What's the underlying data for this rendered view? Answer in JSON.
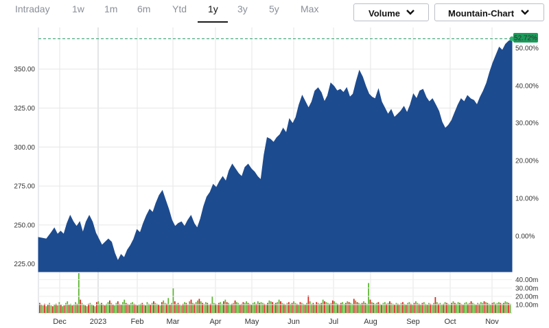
{
  "tabs": [
    {
      "label": "Intraday",
      "active": false
    },
    {
      "label": "1w",
      "active": false
    },
    {
      "label": "1m",
      "active": false
    },
    {
      "label": "6m",
      "active": false
    },
    {
      "label": "Ytd",
      "active": false
    },
    {
      "label": "1y",
      "active": true
    },
    {
      "label": "3y",
      "active": false
    },
    {
      "label": "5y",
      "active": false
    },
    {
      "label": "Max",
      "active": false
    }
  ],
  "controls": {
    "volume_label": "Volume",
    "chart_type_label": "Mountain-Chart"
  },
  "colors": {
    "area_fill": "#1d4b8f",
    "up_volume": "#5cb531",
    "down_volume": "#d7261e",
    "badge": "#1a9c5a",
    "grid": "#e6e6e6"
  },
  "chart_data": {
    "type": "area",
    "price_axis": {
      "ticks": [
        "225.00",
        "250.00",
        "275.00",
        "300.00",
        "325.00",
        "350.00"
      ],
      "range": [
        220,
        371
      ]
    },
    "percent_axis": {
      "ticks": [
        "0.00%",
        "10.00%",
        "20.00%",
        "30.00%",
        "40.00%",
        "50.00%"
      ]
    },
    "volume_axis": {
      "ticks": [
        "10.00m",
        "20.00m",
        "30.00m",
        "40.00m"
      ],
      "max": 48
    },
    "last_change_badge": "52.72%",
    "months": [
      "Dec",
      "2023",
      "Feb",
      "Mar",
      "Apr",
      "May",
      "Jun",
      "Jul",
      "Aug",
      "Sep",
      "Oct",
      "Nov"
    ],
    "price_series": [
      [
        0,
        242
      ],
      [
        5,
        241
      ],
      [
        8,
        245
      ],
      [
        10,
        248
      ],
      [
        12,
        244
      ],
      [
        14,
        246
      ],
      [
        16,
        244
      ],
      [
        18,
        251
      ],
      [
        20,
        256
      ],
      [
        22,
        252
      ],
      [
        24,
        249
      ],
      [
        26,
        252
      ],
      [
        28,
        245
      ],
      [
        30,
        252
      ],
      [
        32,
        256
      ],
      [
        34,
        252
      ],
      [
        36,
        245
      ],
      [
        38,
        241
      ],
      [
        40,
        237
      ],
      [
        42,
        239
      ],
      [
        44,
        241
      ],
      [
        46,
        239
      ],
      [
        48,
        232
      ],
      [
        50,
        227
      ],
      [
        52,
        231
      ],
      [
        54,
        229
      ],
      [
        56,
        234
      ],
      [
        58,
        237
      ],
      [
        60,
        241
      ],
      [
        62,
        247
      ],
      [
        64,
        245
      ],
      [
        66,
        251
      ],
      [
        68,
        256
      ],
      [
        70,
        260
      ],
      [
        72,
        258
      ],
      [
        74,
        264
      ],
      [
        76,
        269
      ],
      [
        78,
        272
      ],
      [
        80,
        266
      ],
      [
        82,
        260
      ],
      [
        84,
        253
      ],
      [
        86,
        249
      ],
      [
        88,
        251
      ],
      [
        90,
        252
      ],
      [
        92,
        249
      ],
      [
        94,
        253
      ],
      [
        96,
        256
      ],
      [
        98,
        251
      ],
      [
        100,
        248
      ],
      [
        102,
        254
      ],
      [
        104,
        262
      ],
      [
        106,
        268
      ],
      [
        108,
        271
      ],
      [
        110,
        276
      ],
      [
        112,
        274
      ],
      [
        114,
        278
      ],
      [
        116,
        281
      ],
      [
        118,
        278
      ],
      [
        120,
        285
      ],
      [
        122,
        289
      ],
      [
        124,
        286
      ],
      [
        126,
        283
      ],
      [
        128,
        281
      ],
      [
        130,
        287
      ],
      [
        132,
        289
      ],
      [
        134,
        286
      ],
      [
        136,
        284
      ],
      [
        138,
        281
      ],
      [
        140,
        279
      ],
      [
        142,
        295
      ],
      [
        144,
        306
      ],
      [
        146,
        305
      ],
      [
        148,
        303
      ],
      [
        150,
        306
      ],
      [
        152,
        308
      ],
      [
        154,
        312
      ],
      [
        156,
        309
      ],
      [
        158,
        318
      ],
      [
        160,
        315
      ],
      [
        162,
        319
      ],
      [
        164,
        327
      ],
      [
        166,
        333
      ],
      [
        168,
        329
      ],
      [
        170,
        325
      ],
      [
        172,
        329
      ],
      [
        174,
        336
      ],
      [
        176,
        338
      ],
      [
        178,
        335
      ],
      [
        180,
        329
      ],
      [
        182,
        333
      ],
      [
        184,
        341
      ],
      [
        186,
        339
      ],
      [
        188,
        336
      ],
      [
        190,
        337
      ],
      [
        192,
        335
      ],
      [
        194,
        338
      ],
      [
        196,
        332
      ],
      [
        198,
        334
      ],
      [
        200,
        342
      ],
      [
        202,
        349
      ],
      [
        204,
        345
      ],
      [
        206,
        339
      ],
      [
        208,
        334
      ],
      [
        210,
        332
      ],
      [
        212,
        331
      ],
      [
        214,
        337
      ],
      [
        216,
        329
      ],
      [
        218,
        325
      ],
      [
        220,
        321
      ],
      [
        222,
        324
      ],
      [
        224,
        319
      ],
      [
        226,
        321
      ],
      [
        228,
        323
      ],
      [
        230,
        326
      ],
      [
        232,
        322
      ],
      [
        234,
        327
      ],
      [
        236,
        334
      ],
      [
        238,
        331
      ],
      [
        240,
        336
      ],
      [
        242,
        337
      ],
      [
        244,
        332
      ],
      [
        246,
        329
      ],
      [
        248,
        331
      ],
      [
        250,
        327
      ],
      [
        252,
        323
      ],
      [
        254,
        316
      ],
      [
        256,
        312
      ],
      [
        258,
        314
      ],
      [
        260,
        317
      ],
      [
        262,
        322
      ],
      [
        264,
        327
      ],
      [
        266,
        331
      ],
      [
        268,
        329
      ],
      [
        270,
        333
      ],
      [
        272,
        331
      ],
      [
        274,
        330
      ],
      [
        276,
        327
      ],
      [
        278,
        332
      ],
      [
        280,
        336
      ],
      [
        282,
        341
      ],
      [
        284,
        348
      ],
      [
        286,
        354
      ],
      [
        288,
        359
      ],
      [
        290,
        364
      ],
      [
        292,
        362
      ],
      [
        294,
        366
      ],
      [
        296,
        368
      ],
      [
        298,
        369
      ]
    ],
    "price_x_range": [
      0,
      298
    ],
    "volume_bars": [
      12,
      10,
      9,
      11,
      8,
      10,
      12,
      9,
      8,
      10,
      11,
      9,
      13,
      10,
      8,
      9,
      12,
      14,
      10,
      11,
      9,
      10,
      13,
      11,
      48,
      16,
      12,
      10,
      9,
      8,
      11,
      12,
      10,
      9,
      8,
      13,
      14,
      11,
      12,
      10,
      9,
      11,
      13,
      15,
      12,
      10,
      9,
      12,
      14,
      11,
      10,
      13,
      16,
      12,
      11,
      10,
      12,
      13,
      11,
      10,
      9,
      10,
      11,
      12,
      10,
      9,
      13,
      11,
      10,
      12,
      14,
      12,
      11,
      10,
      9,
      13,
      15,
      12,
      11,
      18,
      10,
      12,
      30,
      14,
      11,
      12,
      10,
      9,
      11,
      13,
      12,
      10,
      14,
      16,
      12,
      11,
      13,
      15,
      17,
      14,
      12,
      11,
      13,
      12,
      10,
      11,
      20,
      12,
      11,
      10,
      12,
      13,
      11,
      14,
      16,
      13,
      12,
      10,
      11,
      12,
      15,
      13,
      12,
      10,
      11,
      13,
      12,
      14,
      12,
      11,
      10,
      12,
      13,
      11,
      14,
      12,
      13,
      12,
      11,
      10,
      12,
      15,
      14,
      13,
      11,
      12,
      13,
      16,
      14,
      12,
      11,
      10,
      12,
      13,
      11,
      12,
      14,
      12,
      11,
      10,
      13,
      12,
      11,
      10,
      12,
      21,
      14,
      11,
      12,
      10,
      13,
      12,
      11,
      12,
      16,
      14,
      13,
      12,
      11,
      12,
      15,
      14,
      12,
      11,
      10,
      12,
      13,
      11,
      12,
      14,
      13,
      12,
      11,
      17,
      15,
      13,
      12,
      11,
      12,
      14,
      12,
      11,
      36,
      16,
      13,
      12,
      11,
      12,
      13,
      11,
      10,
      12,
      13,
      11,
      12,
      14,
      12,
      11,
      10,
      12,
      11,
      10,
      12,
      13,
      11,
      10,
      12,
      13,
      11,
      10,
      12,
      14,
      12,
      11,
      10,
      12,
      13,
      11,
      10,
      12,
      11,
      10,
      12,
      19,
      13,
      11,
      12,
      10,
      11,
      13,
      12,
      11,
      10,
      12,
      14,
      12,
      11,
      13,
      12,
      11,
      10,
      12,
      13,
      11,
      12,
      14,
      12,
      11,
      10,
      12,
      11,
      13,
      12,
      14,
      13,
      12,
      11,
      10,
      12,
      13,
      11,
      12,
      13,
      12,
      11,
      12,
      14,
      13,
      12,
      11
    ]
  }
}
